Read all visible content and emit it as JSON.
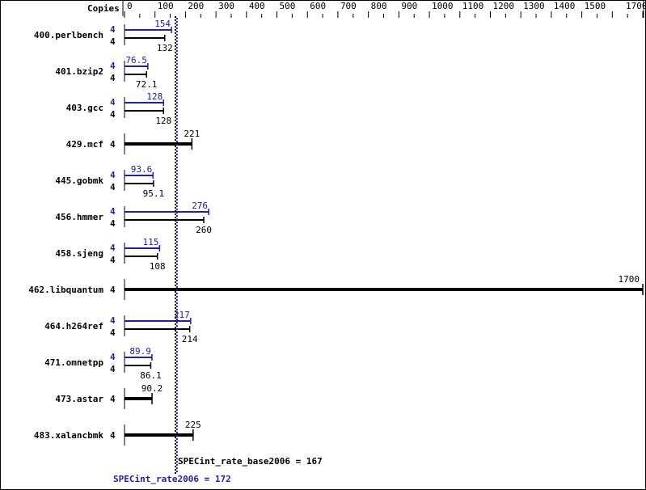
{
  "chart_data": {
    "type": "bar",
    "orientation": "horizontal",
    "copies_header": "Copies",
    "xlim": [
      0,
      1700
    ],
    "ticks": [
      0,
      100,
      200,
      300,
      400,
      500,
      600,
      700,
      800,
      900,
      1000,
      1100,
      1200,
      1300,
      1400,
      1500,
      1700
    ],
    "colors": {
      "base": "#000000",
      "peak": "#2020a0"
    },
    "benchmarks": [
      {
        "name": "400.perlbench",
        "copies_peak": "4",
        "copies_base": "4",
        "peak": 154,
        "base": 132
      },
      {
        "name": "401.bzip2",
        "copies_peak": "4",
        "copies_base": "4",
        "peak": 76.5,
        "base": 72.1
      },
      {
        "name": "403.gcc",
        "copies_peak": "4",
        "copies_base": "4",
        "peak": 128,
        "base": 128
      },
      {
        "name": "429.mcf",
        "copies_base": "4",
        "base": 221
      },
      {
        "name": "445.gobmk",
        "copies_peak": "4",
        "copies_base": "4",
        "peak": 93.6,
        "base": 95.1
      },
      {
        "name": "456.hmmer",
        "copies_peak": "4",
        "copies_base": "4",
        "peak": 276,
        "base": 260
      },
      {
        "name": "458.sjeng",
        "copies_peak": "4",
        "copies_base": "4",
        "peak": 115,
        "base": 108
      },
      {
        "name": "462.libquantum",
        "copies_base": "4",
        "base": 1700
      },
      {
        "name": "464.h264ref",
        "copies_peak": "4",
        "copies_base": "4",
        "peak": 217,
        "base": 214
      },
      {
        "name": "471.omnetpp",
        "copies_peak": "4",
        "copies_base": "4",
        "peak": 89.9,
        "base": 86.1
      },
      {
        "name": "473.astar",
        "copies_base": "4",
        "base": 90.2
      },
      {
        "name": "483.xalancbmk",
        "copies_base": "4",
        "base": 225
      }
    ],
    "base_score": 167,
    "peak_score": 172,
    "base_label": "SPECint_rate_base2006 = 167",
    "peak_label": "SPECint_rate2006 = 172"
  }
}
